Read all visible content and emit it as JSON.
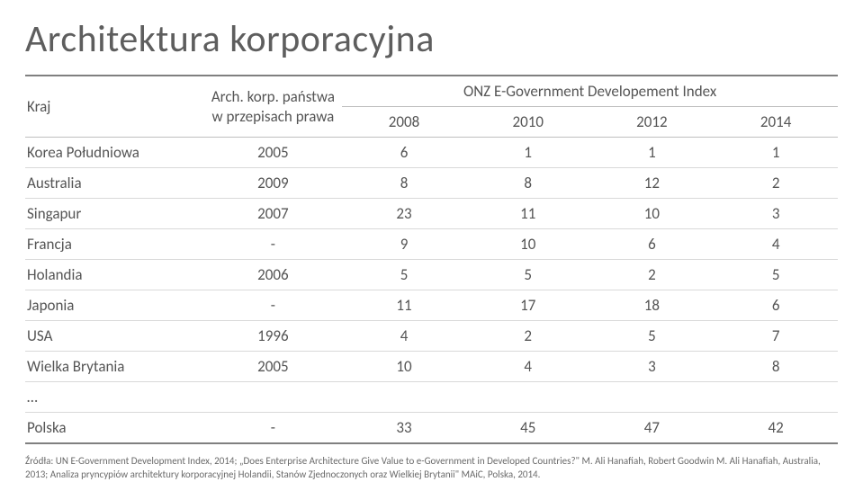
{
  "title_a": "Architektura ",
  "title_b": "k",
  "title_c": "orporacyjna",
  "headers": {
    "country": "Kraj",
    "arch_line1": "Arch. korp. państwa",
    "arch_line2": "w przepisach prawa",
    "index_group": "ONZ E-Government Developement Index",
    "y2008": "2008",
    "y2010": "2010",
    "y2012": "2012",
    "y2014": "2014"
  },
  "rows": [
    {
      "country": "Korea Południowa",
      "year": "2005",
      "v": [
        "6",
        "1",
        "1",
        "1"
      ]
    },
    {
      "country": "Australia",
      "year": "2009",
      "v": [
        "8",
        "8",
        "12",
        "2"
      ]
    },
    {
      "country": "Singapur",
      "year": "2007",
      "v": [
        "23",
        "11",
        "10",
        "3"
      ]
    },
    {
      "country": "Francja",
      "year": "-",
      "v": [
        "9",
        "10",
        "6",
        "4"
      ]
    },
    {
      "country": "Holandia",
      "year": "2006",
      "v": [
        "5",
        "5",
        "2",
        "5"
      ]
    },
    {
      "country": "Japonia",
      "year": "-",
      "v": [
        "11",
        "17",
        "18",
        "6"
      ]
    },
    {
      "country": "USA",
      "year": "1996",
      "v": [
        "4",
        "2",
        "5",
        "7"
      ]
    },
    {
      "country": "Wielka Brytania",
      "year": "2005",
      "v": [
        "10",
        "4",
        "3",
        "8"
      ]
    }
  ],
  "ellipsis": "…",
  "poland": {
    "country": "Polska",
    "year": "-",
    "v": [
      "33",
      "45",
      "47",
      "42"
    ]
  },
  "footnote": "Źródła: UN E-Government Development Index, 2014; „Does Enterprise Architecture Give Value to e-Government in Developed Countries?\" M. Ali Hanafiah, Robert Goodwin M. Ali Hanafiah, Australia, 2013; Analiza pryncypiów architektury korporacyjnej Holandii, Stanów Zjednoczonych oraz Wielkiej Brytanii\" MAiC, Polska, 2014.",
  "colors": {
    "text": "#595959",
    "border_strong": "#808080",
    "border_light": "#d9d9d9",
    "background": "#ffffff"
  }
}
